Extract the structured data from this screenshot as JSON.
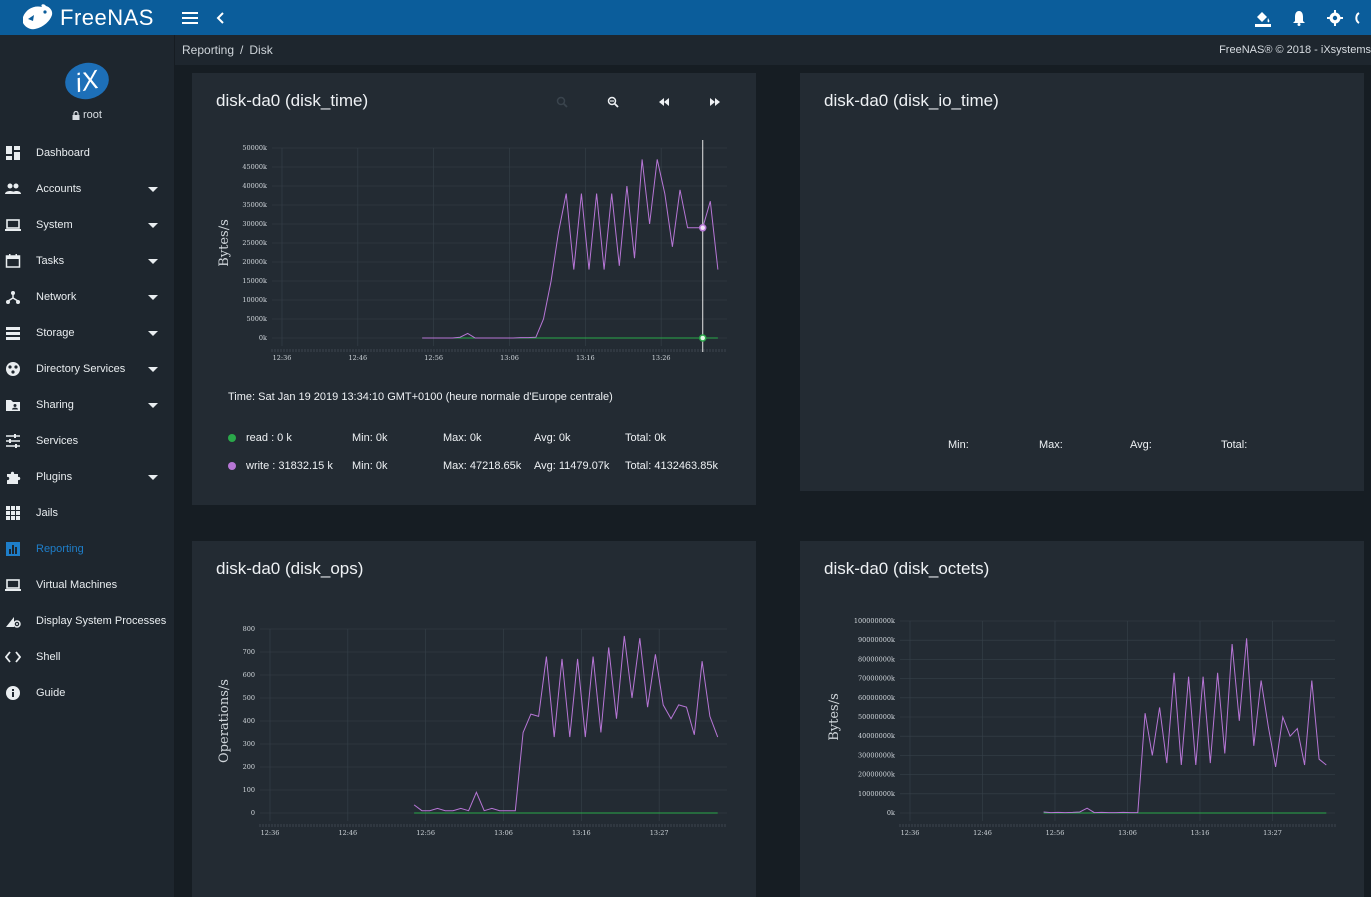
{
  "app": {
    "brand": "FreeNAS",
    "user": "root",
    "copyright": "FreeNAS® © 2018 - iXsystems"
  },
  "breadcrumb": {
    "section": "Reporting",
    "page": "Disk"
  },
  "colors": {
    "topbar": "#0b5d9b",
    "active": "#1e7ec9",
    "read": "#2aa84a",
    "write": "#b776d6"
  },
  "sidebar": {
    "items": [
      {
        "label": "Dashboard",
        "icon": "dashboard-icon",
        "caret": false
      },
      {
        "label": "Accounts",
        "icon": "people-icon",
        "caret": true
      },
      {
        "label": "System",
        "icon": "laptop-icon",
        "caret": true
      },
      {
        "label": "Tasks",
        "icon": "calendar-icon",
        "caret": true
      },
      {
        "label": "Network",
        "icon": "network-icon",
        "caret": true
      },
      {
        "label": "Storage",
        "icon": "storage-icon",
        "caret": true
      },
      {
        "label": "Directory Services",
        "icon": "directory-icon",
        "caret": true
      },
      {
        "label": "Sharing",
        "icon": "folder-shared-icon",
        "caret": true
      },
      {
        "label": "Services",
        "icon": "tune-icon",
        "caret": false
      },
      {
        "label": "Plugins",
        "icon": "puzzle-icon",
        "caret": true
      },
      {
        "label": "Jails",
        "icon": "grid-icon",
        "caret": false
      },
      {
        "label": "Reporting",
        "icon": "insert-chart-icon",
        "caret": false,
        "active": true
      },
      {
        "label": "Virtual Machines",
        "icon": "laptop-icon",
        "caret": false
      },
      {
        "label": "Display System Processes",
        "icon": "processes-icon",
        "caret": false
      },
      {
        "label": "Shell",
        "icon": "code-icon",
        "caret": false
      },
      {
        "label": "Guide",
        "icon": "info-icon",
        "caret": false
      }
    ]
  },
  "cards": {
    "disk_time": {
      "title": "disk-da0 (disk_time)",
      "time": "Time: Sat Jan 19 2019 13:34:10 GMT+0100 (heure normale d'Europe centrale)",
      "legend": [
        {
          "name": "read : 0 k",
          "min": "Min: 0k",
          "max": "Max: 0k",
          "avg": "Avg: 0k",
          "total": "Total: 0k"
        },
        {
          "name": "write : 31832.15 k",
          "min": "Min: 0k",
          "max": "Max: 47218.65k",
          "avg": "Avg: 11479.07k",
          "total": "Total: 4132463.85k"
        }
      ]
    },
    "disk_io_time": {
      "title": "disk-da0 (disk_io_time)",
      "stats": {
        "min": "Min:",
        "max": "Max:",
        "avg": "Avg:",
        "total": "Total:"
      }
    },
    "disk_ops": {
      "title": "disk-da0 (disk_ops)"
    },
    "disk_octets": {
      "title": "disk-da0 (disk_octets)"
    }
  },
  "chart_data": [
    {
      "type": "line",
      "ylabel": "Bytes/s",
      "xticks": [
        "12:36",
        "12:46",
        "12:56",
        "13:06",
        "13:16",
        "13:26"
      ],
      "yticks": [
        "0k",
        "5000k",
        "10000k",
        "15000k",
        "20000k",
        "25000k",
        "30000k",
        "35000k",
        "40000k",
        "45000k",
        "50000k"
      ],
      "ylim": [
        0,
        50000
      ],
      "series": [
        {
          "name": "read",
          "color": "#2aa84a",
          "values": [
            0,
            0,
            0,
            0,
            0,
            0,
            0,
            0,
            0,
            0,
            0,
            0,
            0,
            0,
            0,
            0,
            0,
            0,
            0,
            0,
            0,
            0,
            0,
            0,
            0,
            0,
            0,
            0,
            0,
            0,
            0,
            0,
            0,
            0,
            0,
            0,
            0,
            0,
            0,
            0
          ]
        },
        {
          "name": "write",
          "color": "#b776d6",
          "values": [
            0,
            0,
            0,
            0,
            0,
            200,
            1200,
            0,
            0,
            0,
            0,
            0,
            0,
            100,
            100,
            200,
            5000,
            15000,
            28000,
            38000,
            18000,
            38000,
            18000,
            38000,
            18000,
            38000,
            19000,
            40000,
            21000,
            47000,
            30000,
            47000,
            38000,
            24000,
            39000,
            29000,
            29000,
            29000,
            36000,
            18000
          ]
        }
      ]
    },
    {
      "type": "line",
      "ylabel": "Operations/s",
      "xticks": [
        "12:36",
        "12:46",
        "12:56",
        "13:06",
        "13:16",
        "13:27"
      ],
      "yticks": [
        "0",
        "100",
        "200",
        "300",
        "400",
        "500",
        "600",
        "700",
        "800"
      ],
      "ylim": [
        0,
        800
      ],
      "series": [
        {
          "name": "read",
          "color": "#2aa84a",
          "values": [
            0,
            0,
            0,
            0,
            0,
            0,
            0,
            0,
            0,
            0,
            0,
            0,
            0,
            0,
            0,
            0,
            0,
            0,
            0,
            0,
            0,
            0,
            0,
            0,
            0,
            0,
            0,
            0,
            0,
            0,
            0,
            0,
            0,
            0,
            0,
            0,
            0,
            0,
            0,
            0
          ]
        },
        {
          "name": "write",
          "color": "#b776d6",
          "values": [
            35,
            10,
            10,
            20,
            10,
            10,
            20,
            10,
            90,
            10,
            20,
            10,
            10,
            10,
            350,
            430,
            420,
            680,
            330,
            670,
            330,
            670,
            330,
            680,
            350,
            720,
            410,
            770,
            500,
            760,
            460,
            690,
            470,
            410,
            470,
            460,
            340,
            660,
            420,
            330
          ]
        }
      ]
    },
    {
      "type": "line",
      "ylabel": "Bytes/s",
      "xticks": [
        "12:36",
        "12:46",
        "12:56",
        "13:06",
        "13:16",
        "13:27"
      ],
      "yticks": [
        "0k",
        "10000000k",
        "20000000k",
        "30000000k",
        "40000000k",
        "50000000k",
        "60000000k",
        "70000000k",
        "80000000k",
        "90000000k",
        "100000000k"
      ],
      "ylim": [
        0,
        100000000
      ],
      "series": [
        {
          "name": "read",
          "color": "#2aa84a",
          "values": [
            0,
            0,
            0,
            0,
            0,
            0,
            0,
            0,
            0,
            0,
            0,
            0,
            0,
            0,
            0,
            0,
            0,
            0,
            0,
            0,
            0,
            0,
            0,
            0,
            0,
            0,
            0,
            0,
            0,
            0,
            0,
            0,
            0,
            0,
            0,
            0,
            0,
            0,
            0,
            0
          ]
        },
        {
          "name": "write",
          "color": "#b776d6",
          "values": [
            500000,
            200000,
            300000,
            200000,
            300000,
            500000,
            2500000,
            200000,
            300000,
            200000,
            200000,
            300000,
            200000,
            200000,
            52000000,
            30000000,
            55000000,
            26000000,
            73000000,
            25000000,
            71000000,
            25000000,
            71000000,
            26000000,
            73000000,
            31000000,
            88000000,
            48000000,
            91000000,
            35000000,
            69000000,
            45000000,
            24000000,
            50000000,
            40000000,
            44000000,
            25000000,
            69000000,
            28000000,
            25000000
          ]
        }
      ]
    }
  ]
}
